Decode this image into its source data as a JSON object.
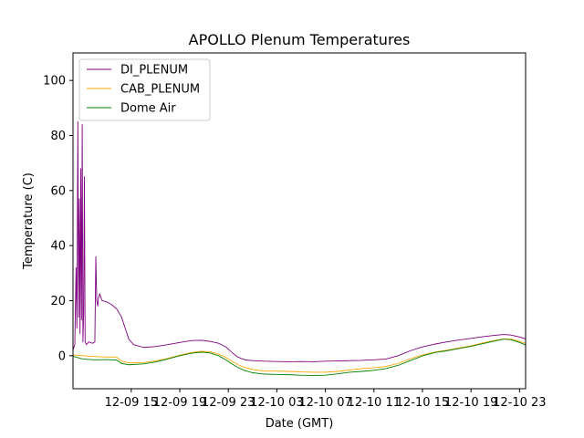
{
  "chart_data": {
    "type": "line",
    "title": "APOLLO Plenum Temperatures",
    "xlabel": "Date (GMT)",
    "ylabel": "Temperature (C)",
    "xlim": [
      10.2,
      47.5
    ],
    "ylim": [
      -12,
      110
    ],
    "grid": false,
    "legend_position": "top-left",
    "x_ticks": [
      {
        "x": 15,
        "label": "12-09 15"
      },
      {
        "x": 19,
        "label": "12-09 19"
      },
      {
        "x": 23,
        "label": "12-09 23"
      },
      {
        "x": 27,
        "label": "12-10 03"
      },
      {
        "x": 31,
        "label": "12-10 07"
      },
      {
        "x": 35,
        "label": "12-10 11"
      },
      {
        "x": 39,
        "label": "12-10 15"
      },
      {
        "x": 43,
        "label": "12-10 19"
      },
      {
        "x": 47,
        "label": "12-10 23"
      }
    ],
    "y_ticks": [
      0,
      20,
      40,
      60,
      80,
      100
    ],
    "series": [
      {
        "name": "DI_PLENUM",
        "color": "#800080",
        "points": [
          [
            10.2,
            2
          ],
          [
            10.35,
            4
          ],
          [
            10.45,
            32
          ],
          [
            10.52,
            10
          ],
          [
            10.6,
            85
          ],
          [
            10.66,
            14
          ],
          [
            10.72,
            57
          ],
          [
            10.78,
            8
          ],
          [
            10.84,
            68
          ],
          [
            10.9,
            13
          ],
          [
            10.96,
            84
          ],
          [
            11.02,
            5
          ],
          [
            11.08,
            16
          ],
          [
            11.14,
            65
          ],
          [
            11.2,
            5
          ],
          [
            11.3,
            4
          ],
          [
            11.5,
            5
          ],
          [
            11.8,
            4.5
          ],
          [
            12.0,
            5
          ],
          [
            12.08,
            36
          ],
          [
            12.16,
            20
          ],
          [
            12.24,
            18
          ],
          [
            12.3,
            21
          ],
          [
            12.4,
            22.5
          ],
          [
            12.6,
            20
          ],
          [
            13.0,
            19.5
          ],
          [
            13.4,
            18.5
          ],
          [
            13.8,
            17
          ],
          [
            14.2,
            14
          ],
          [
            14.5,
            10
          ],
          [
            14.8,
            6
          ],
          [
            15.2,
            4
          ],
          [
            16.0,
            3
          ],
          [
            17.0,
            3.3
          ],
          [
            18.0,
            4
          ],
          [
            19.0,
            4.8
          ],
          [
            20.0,
            5.5
          ],
          [
            20.8,
            5.6
          ],
          [
            21.5,
            5.2
          ],
          [
            22.2,
            4.5
          ],
          [
            22.8,
            3.2
          ],
          [
            23.3,
            1.2
          ],
          [
            23.7,
            -0.3
          ],
          [
            24.1,
            -1.1
          ],
          [
            24.5,
            -1.6
          ],
          [
            25.0,
            -1.8
          ],
          [
            26.0,
            -2
          ],
          [
            27.0,
            -2.1
          ],
          [
            28.0,
            -2.2
          ],
          [
            29.0,
            -2.1
          ],
          [
            30.0,
            -2.2
          ],
          [
            31.0,
            -2
          ],
          [
            32.0,
            -1.9
          ],
          [
            33.0,
            -1.8
          ],
          [
            34.0,
            -1.7
          ],
          [
            35.0,
            -1.5
          ],
          [
            36.0,
            -1.2
          ],
          [
            37.0,
            0
          ],
          [
            38.0,
            1.8
          ],
          [
            39.0,
            3.2
          ],
          [
            40.0,
            4.2
          ],
          [
            41.0,
            5
          ],
          [
            42.0,
            5.7
          ],
          [
            43.0,
            6.3
          ],
          [
            44.0,
            6.9
          ],
          [
            45.0,
            7.4
          ],
          [
            45.7,
            7.7
          ],
          [
            46.3,
            7.5
          ],
          [
            47.0,
            6.8
          ],
          [
            47.5,
            6.1
          ]
        ]
      },
      {
        "name": "CAB_PLENUM",
        "color": "#ffa500",
        "points": [
          [
            10.2,
            0.3
          ],
          [
            11.0,
            0
          ],
          [
            12.0,
            -0.3
          ],
          [
            13.0,
            -0.5
          ],
          [
            13.8,
            -0.5
          ],
          [
            14.2,
            -2
          ],
          [
            14.8,
            -2.6
          ],
          [
            16.0,
            -2.5
          ],
          [
            17.0,
            -1.9
          ],
          [
            18.0,
            -1
          ],
          [
            19.0,
            0.2
          ],
          [
            20.0,
            1.2
          ],
          [
            20.8,
            1.6
          ],
          [
            21.5,
            1.4
          ],
          [
            22.2,
            0.6
          ],
          [
            22.8,
            -0.6
          ],
          [
            23.3,
            -2
          ],
          [
            23.8,
            -3.3
          ],
          [
            24.3,
            -4.2
          ],
          [
            25.0,
            -5
          ],
          [
            26.0,
            -5.6
          ],
          [
            27.0,
            -5.6
          ],
          [
            28.0,
            -5.7
          ],
          [
            29.0,
            -5.9
          ],
          [
            30.0,
            -6
          ],
          [
            31.0,
            -6
          ],
          [
            32.0,
            -5.7
          ],
          [
            33.0,
            -5.2
          ],
          [
            34.0,
            -4.7
          ],
          [
            35.0,
            -4.4
          ],
          [
            36.0,
            -3.9
          ],
          [
            37.0,
            -2.8
          ],
          [
            38.0,
            -1.1
          ],
          [
            39.0,
            0.3
          ],
          [
            40.0,
            1.3
          ],
          [
            41.0,
            2
          ],
          [
            42.0,
            2.8
          ],
          [
            43.0,
            3.6
          ],
          [
            44.0,
            4.7
          ],
          [
            45.0,
            5.6
          ],
          [
            45.7,
            6.1
          ],
          [
            46.3,
            6
          ],
          [
            47.0,
            5.2
          ],
          [
            47.5,
            4.5
          ]
        ]
      },
      {
        "name": "Dome Air",
        "color": "#008000",
        "points": [
          [
            10.2,
            -0.2
          ],
          [
            11.0,
            -1.2
          ],
          [
            12.0,
            -1.5
          ],
          [
            13.0,
            -1.4
          ],
          [
            13.8,
            -1.6
          ],
          [
            14.2,
            -2.8
          ],
          [
            14.8,
            -3.3
          ],
          [
            16.0,
            -3
          ],
          [
            17.0,
            -2.3
          ],
          [
            18.0,
            -1.2
          ],
          [
            19.0,
            0
          ],
          [
            20.0,
            0.9
          ],
          [
            20.8,
            1.3
          ],
          [
            21.5,
            1
          ],
          [
            22.2,
            0
          ],
          [
            22.8,
            -1.5
          ],
          [
            23.3,
            -3
          ],
          [
            23.8,
            -4.3
          ],
          [
            24.3,
            -5.3
          ],
          [
            25.0,
            -6.2
          ],
          [
            26.0,
            -6.7
          ],
          [
            27.0,
            -6.8
          ],
          [
            28.0,
            -6.9
          ],
          [
            29.0,
            -7.1
          ],
          [
            30.0,
            -7.2
          ],
          [
            31.0,
            -7.1
          ],
          [
            32.0,
            -6.6
          ],
          [
            33.0,
            -6
          ],
          [
            34.0,
            -5.7
          ],
          [
            35.0,
            -5.3
          ],
          [
            36.0,
            -4.7
          ],
          [
            37.0,
            -3.5
          ],
          [
            38.0,
            -1.8
          ],
          [
            39.0,
            -0.1
          ],
          [
            40.0,
            1.1
          ],
          [
            41.0,
            1.8
          ],
          [
            42.0,
            2.6
          ],
          [
            43.0,
            3.4
          ],
          [
            44.0,
            4.4
          ],
          [
            45.0,
            5.4
          ],
          [
            45.7,
            6
          ],
          [
            46.3,
            5.8
          ],
          [
            47.0,
            4.8
          ],
          [
            47.5,
            3.9
          ]
        ]
      }
    ]
  }
}
